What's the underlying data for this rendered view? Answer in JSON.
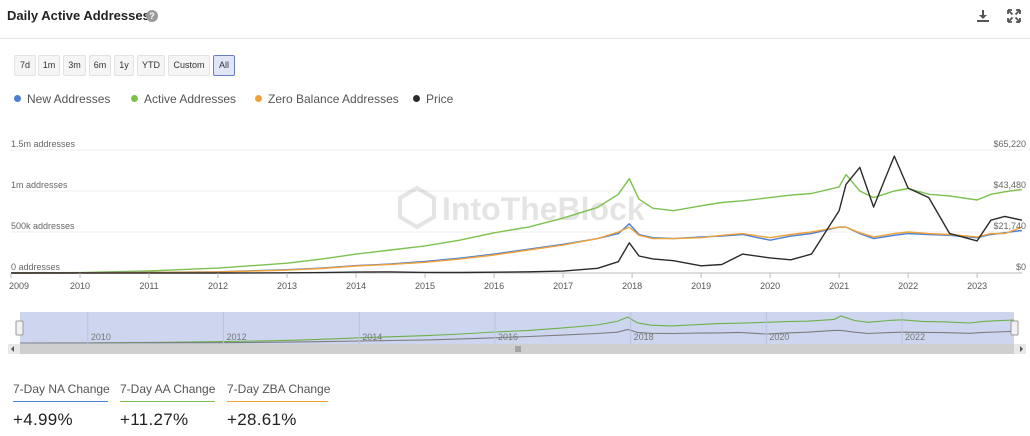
{
  "header": {
    "title": "Daily Active Addresses",
    "help_glyph": "?"
  },
  "toolbar": {
    "icons": [
      "download-icon",
      "expand-icon"
    ]
  },
  "ranges": [
    {
      "label": "7d",
      "active": false
    },
    {
      "label": "1m",
      "active": false
    },
    {
      "label": "3m",
      "active": false
    },
    {
      "label": "6m",
      "active": false
    },
    {
      "label": "1y",
      "active": false
    },
    {
      "label": "YTD",
      "active": false
    },
    {
      "label": "Custom",
      "active": false
    },
    {
      "label": "All",
      "active": true
    }
  ],
  "watermark": "IntoTheBlock",
  "colors": {
    "new": "#4a7fd6",
    "active": "#7cc14e",
    "zero": "#f0a23a",
    "price": "#2b2b2b",
    "navigator_fill": "#cdd6ee"
  },
  "chart_data": {
    "type": "line",
    "title": "Daily Active Addresses",
    "x_range": [
      2009.0,
      2023.65
    ],
    "x_ticks": [
      "2009",
      "2010",
      "2011",
      "2012",
      "2013",
      "2014",
      "2015",
      "2016",
      "2017",
      "2018",
      "2019",
      "2020",
      "2021",
      "2022",
      "2023"
    ],
    "y_left": {
      "ticks": [
        "0 addresses",
        "500k addresses",
        "1m addresses",
        "1.5m addresses"
      ],
      "range": [
        0,
        1500000
      ]
    },
    "y_right": {
      "ticks": [
        "$0",
        "$21,740",
        "$43,480",
        "$65,220"
      ],
      "range": [
        0,
        65220
      ]
    },
    "series": [
      {
        "name": "New Addresses",
        "color": "#4a7fd6",
        "axis": "left",
        "x": [
          2009,
          2010,
          2011,
          2012,
          2013,
          2013.5,
          2014,
          2014.5,
          2015,
          2015.5,
          2016,
          2016.5,
          2017,
          2017.5,
          2017.8,
          2017.96,
          2018.1,
          2018.3,
          2018.6,
          2019,
          2019.3,
          2019.6,
          2020,
          2020.3,
          2020.6,
          2021,
          2021.1,
          2021.3,
          2021.5,
          2021.8,
          2022,
          2022.3,
          2022.6,
          2023,
          2023.2,
          2023.4,
          2023.65
        ],
        "values": [
          0,
          2000,
          8000,
          15000,
          40000,
          60000,
          90000,
          110000,
          140000,
          180000,
          230000,
          290000,
          350000,
          420000,
          480000,
          600000,
          470000,
          430000,
          420000,
          440000,
          450000,
          470000,
          400000,
          450000,
          480000,
          560000,
          560000,
          480000,
          420000,
          460000,
          480000,
          470000,
          460000,
          430000,
          470000,
          490000,
          520000
        ]
      },
      {
        "name": "Active Addresses",
        "color": "#7cc14e",
        "axis": "left",
        "x": [
          2009,
          2010,
          2011,
          2012,
          2013,
          2013.5,
          2014,
          2014.5,
          2015,
          2015.5,
          2016,
          2016.5,
          2017,
          2017.5,
          2017.8,
          2017.96,
          2018.1,
          2018.3,
          2018.6,
          2019,
          2019.3,
          2019.6,
          2020,
          2020.3,
          2020.6,
          2021,
          2021.1,
          2021.3,
          2021.5,
          2021.8,
          2022,
          2022.3,
          2022.6,
          2023,
          2023.2,
          2023.4,
          2023.65
        ],
        "values": [
          0,
          5000,
          25000,
          60000,
          120000,
          170000,
          230000,
          280000,
          330000,
          400000,
          490000,
          560000,
          670000,
          800000,
          960000,
          1150000,
          900000,
          790000,
          760000,
          820000,
          860000,
          880000,
          920000,
          950000,
          970000,
          1050000,
          1200000,
          1000000,
          920000,
          1000000,
          1030000,
          960000,
          940000,
          890000,
          960000,
          990000,
          1020000
        ]
      },
      {
        "name": "Zero Balance Addresses",
        "color": "#f0a23a",
        "axis": "left",
        "x": [
          2009,
          2010,
          2011,
          2012,
          2013,
          2013.5,
          2014,
          2014.5,
          2015,
          2015.5,
          2016,
          2016.5,
          2017,
          2017.5,
          2017.8,
          2017.96,
          2018.1,
          2018.3,
          2018.6,
          2019,
          2019.3,
          2019.6,
          2020,
          2020.3,
          2020.6,
          2021,
          2021.1,
          2021.3,
          2021.5,
          2021.8,
          2022,
          2022.3,
          2022.6,
          2023,
          2023.2,
          2023.4,
          2023.65
        ],
        "values": [
          0,
          1000,
          6000,
          12000,
          35000,
          55000,
          85000,
          105000,
          130000,
          170000,
          220000,
          280000,
          340000,
          420000,
          500000,
          560000,
          460000,
          420000,
          420000,
          430000,
          460000,
          480000,
          430000,
          470000,
          500000,
          560000,
          560000,
          490000,
          440000,
          480000,
          500000,
          480000,
          470000,
          440000,
          480000,
          480000,
          560000
        ]
      },
      {
        "name": "Price",
        "color": "#2b2b2b",
        "axis": "right",
        "x": [
          2009,
          2010,
          2011,
          2012,
          2013,
          2013.5,
          2014,
          2014.5,
          2015,
          2015.5,
          2016,
          2016.5,
          2017,
          2017.5,
          2017.8,
          2017.96,
          2018.1,
          2018.3,
          2018.6,
          2019,
          2019.3,
          2019.6,
          2020,
          2020.3,
          2020.6,
          2021,
          2021.1,
          2021.3,
          2021.5,
          2021.8,
          2022,
          2022.3,
          2022.6,
          2023,
          2023.2,
          2023.4,
          2023.65
        ],
        "values": [
          0,
          0,
          10,
          10,
          100,
          200,
          500,
          600,
          300,
          250,
          430,
          650,
          1000,
          2500,
          6000,
          16000,
          9000,
          7500,
          6500,
          3800,
          4500,
          10000,
          8000,
          7000,
          10000,
          33000,
          47000,
          56000,
          35000,
          62000,
          45000,
          40000,
          21000,
          17000,
          28000,
          30000,
          28000
        ]
      }
    ],
    "navigator": {
      "ticks": [
        "2010",
        "2012",
        "2014",
        "2016",
        "2018",
        "2020",
        "2022"
      ]
    }
  },
  "stats": [
    {
      "label": "7-Day NA Change",
      "value": "+4.99%",
      "color": "#4a7fd6"
    },
    {
      "label": "7-Day AA Change",
      "value": "+11.27%",
      "color": "#7cc14e"
    },
    {
      "label": "7-Day ZBA Change",
      "value": "+28.61%",
      "color": "#f0a23a"
    }
  ]
}
